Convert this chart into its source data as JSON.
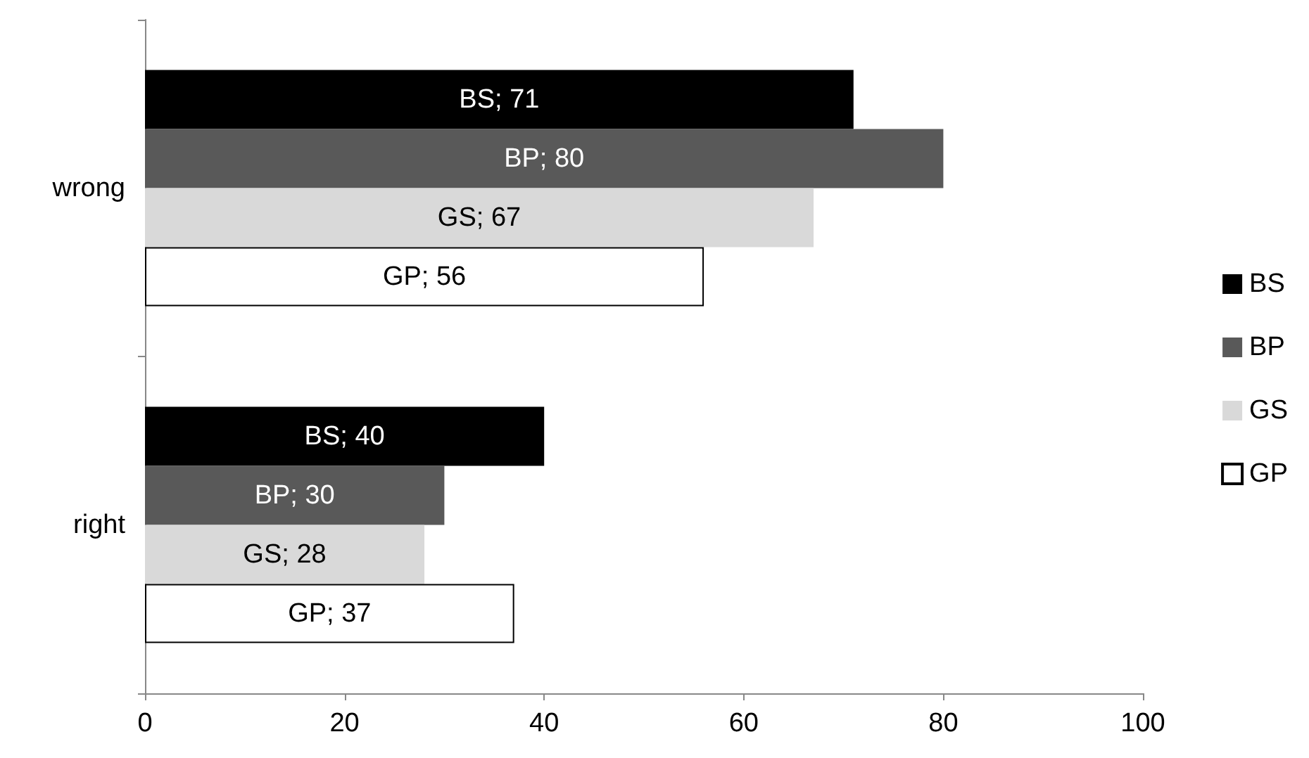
{
  "chart_data": {
    "type": "bar",
    "orientation": "horizontal",
    "categories": [
      "wrong",
      "right"
    ],
    "series": [
      {
        "name": "BS",
        "color": "#000000",
        "values": [
          71,
          40
        ],
        "value_labels": [
          "BS; 71",
          "BS; 40"
        ]
      },
      {
        "name": "BP",
        "color": "#595959",
        "values": [
          80,
          30
        ],
        "value_labels": [
          "BP; 80",
          "BP; 30"
        ]
      },
      {
        "name": "GS",
        "color": "#d9d9d9",
        "values": [
          67,
          28
        ],
        "value_labels": [
          "GS; 67",
          "GS; 28"
        ]
      },
      {
        "name": "GP",
        "color": "#ffffff",
        "values": [
          56,
          37
        ],
        "value_labels": [
          "GP; 56",
          "GP; 37"
        ]
      }
    ],
    "xlim": [
      0,
      100
    ],
    "xticks": [
      0,
      20,
      40,
      60,
      80,
      100
    ],
    "grid": false,
    "legend": "right"
  }
}
